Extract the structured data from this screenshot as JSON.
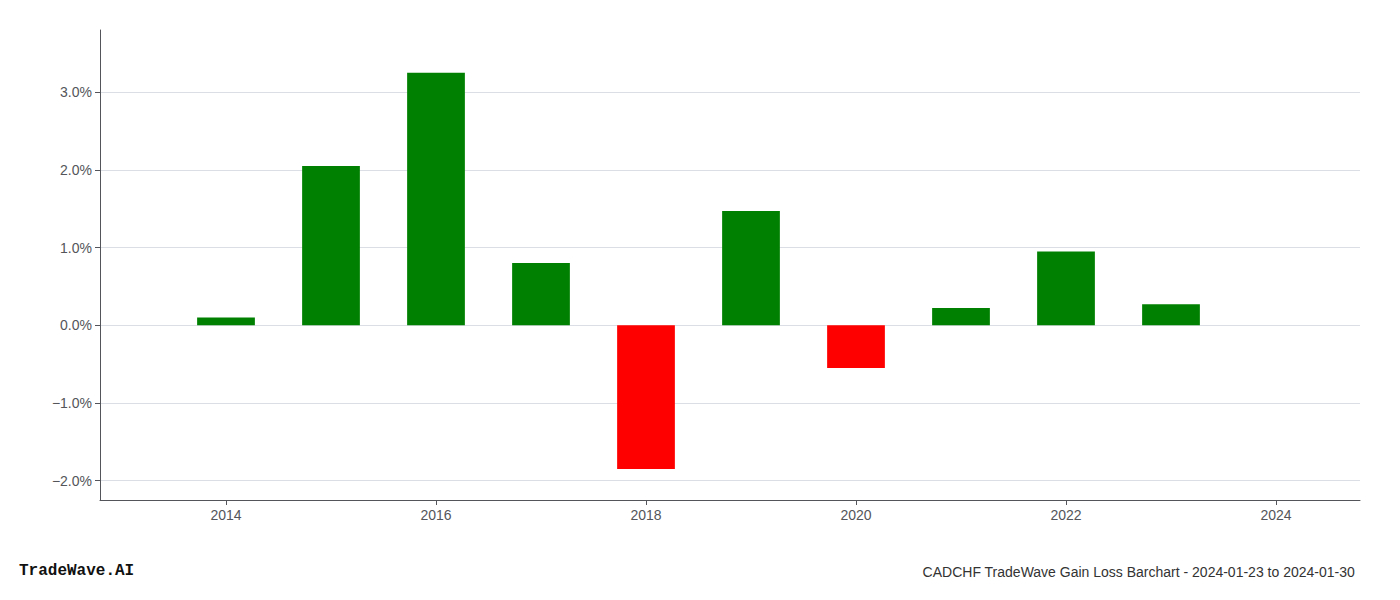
{
  "chart_data": {
    "type": "bar",
    "title": "CADCHF TradeWave Gain Loss Barchart - 2024-01-23 to 2024-01-30",
    "annotations": [
      "TradeWave.AI"
    ],
    "x": [
      2014,
      2015,
      2016,
      2017,
      2018,
      2019,
      2020,
      2021,
      2022,
      2023
    ],
    "values": [
      0.001,
      0.0205,
      0.0325,
      0.008,
      -0.0185,
      0.0147,
      -0.0055,
      0.0022,
      0.0095,
      0.0027
    ],
    "colors": [
      "#008000",
      "#008000",
      "#008000",
      "#008000",
      "#ff0000",
      "#008000",
      "#ff0000",
      "#008000",
      "#008000",
      "#008000"
    ],
    "xlim": [
      2012.8,
      2024.8
    ],
    "xticks": [
      2014,
      2016,
      2018,
      2020,
      2022,
      2024
    ],
    "ylim": [
      -0.0225,
      0.038
    ],
    "yticks": [
      {
        "value": -0.02,
        "label": "−2.0%"
      },
      {
        "value": -0.01,
        "label": "−1.0%"
      },
      {
        "value": 0.0,
        "label": "0.0%"
      },
      {
        "value": 0.01,
        "label": "1.0%"
      },
      {
        "value": 0.02,
        "label": "2.0%"
      },
      {
        "value": 0.03,
        "label": "3.0%"
      }
    ],
    "grid": true
  }
}
